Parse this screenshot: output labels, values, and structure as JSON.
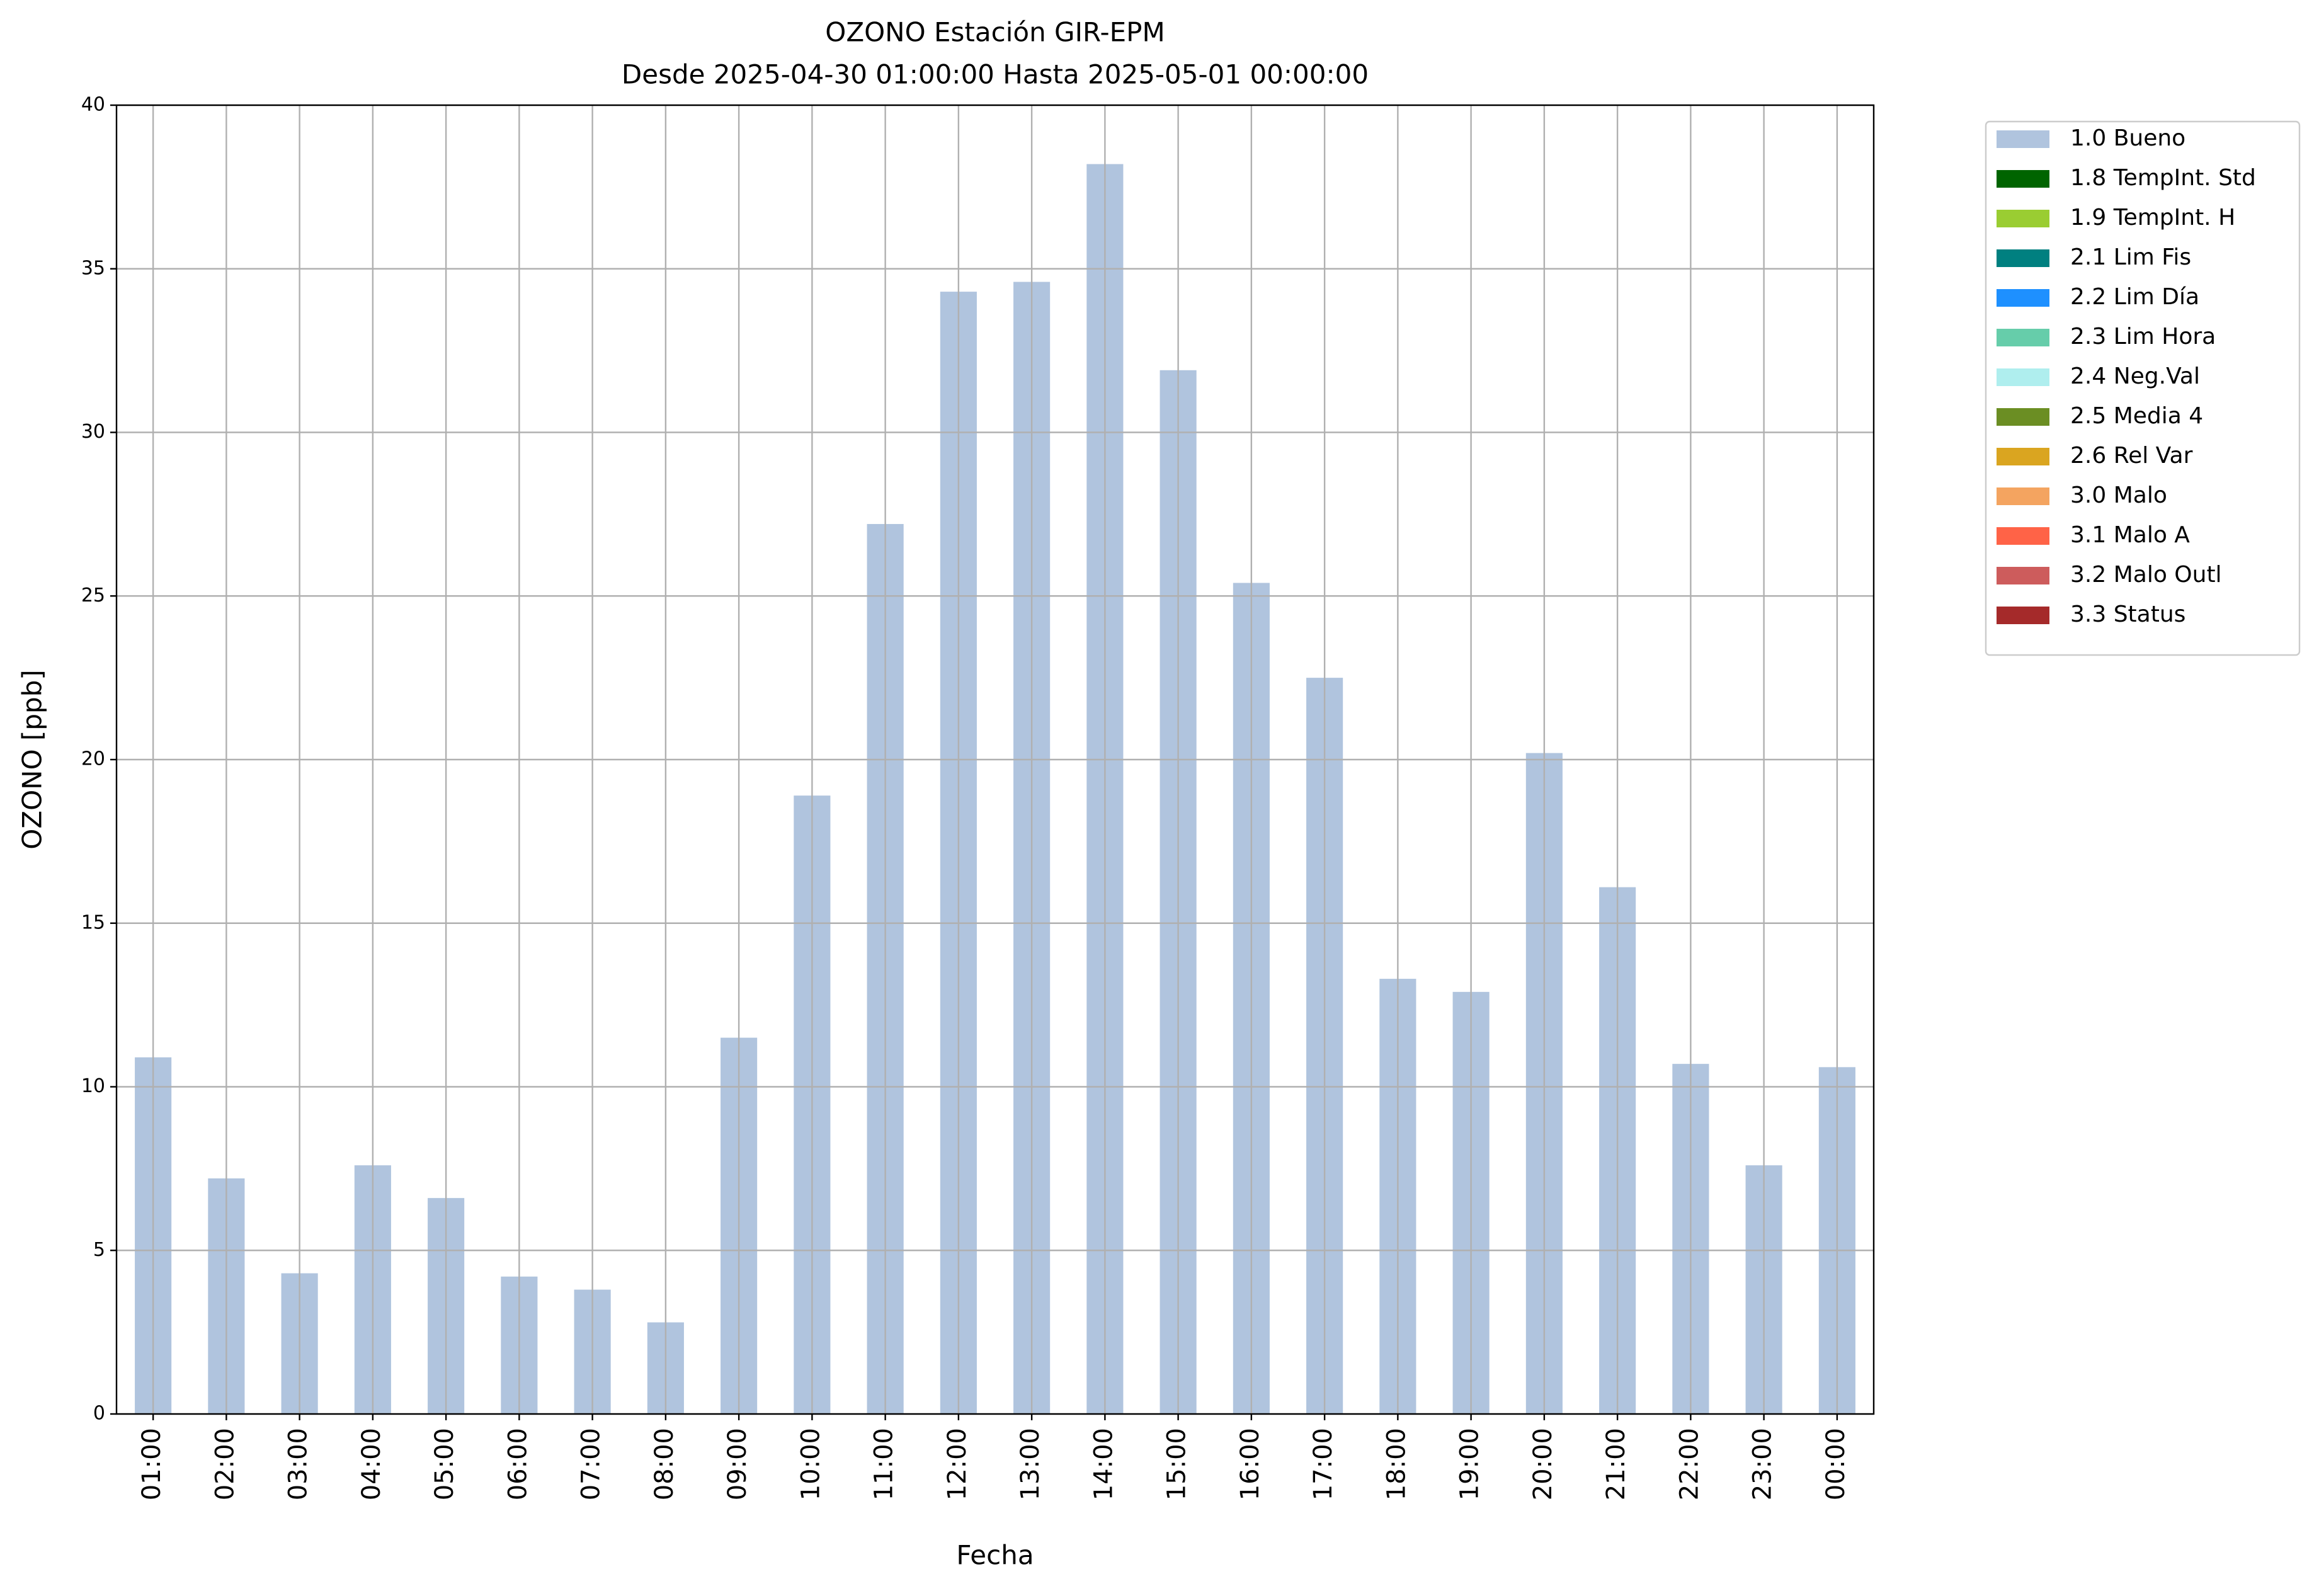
{
  "chart_data": {
    "type": "bar",
    "title": "OZONO Estación GIR-EPM",
    "subtitle": "Desde 2025-04-30 01:00:00 Hasta 2025-05-01 00:00:00",
    "x_label": "Fecha",
    "y_label": "OZONO [ppb]",
    "categories": [
      "01:00",
      "02:00",
      "03:00",
      "04:00",
      "05:00",
      "06:00",
      "07:00",
      "08:00",
      "09:00",
      "10:00",
      "11:00",
      "12:00",
      "13:00",
      "14:00",
      "15:00",
      "16:00",
      "17:00",
      "18:00",
      "19:00",
      "20:00",
      "21:00",
      "22:00",
      "23:00",
      "00:00"
    ],
    "series": [
      {
        "name": "1.0 Bueno",
        "color": "#b0c4de",
        "values": [
          10.9,
          7.2,
          4.3,
          7.6,
          6.6,
          4.2,
          3.8,
          2.8,
          11.5,
          18.9,
          27.2,
          34.3,
          34.6,
          38.2,
          31.9,
          25.4,
          22.5,
          13.3,
          12.9,
          20.2,
          16.1,
          10.7,
          7.6,
          10.6
        ]
      }
    ],
    "legend": [
      {
        "name": "1.8 TempInt. Std",
        "color": "#006400"
      },
      {
        "name": "1.9 TempInt. H",
        "color": "#9acd32"
      },
      {
        "name": "2.1 Lim Fis",
        "color": "#008080"
      },
      {
        "name": "2.2 Lim Día",
        "color": "#1e90ff"
      },
      {
        "name": "2.3 Lim Hora",
        "color": "#66cdaa"
      },
      {
        "name": "2.4 Neg.Val",
        "color": "#afeeee"
      },
      {
        "name": "2.5 Media 4",
        "color": "#6b8e23"
      },
      {
        "name": "2.6 Rel Var",
        "color": "#daa520"
      },
      {
        "name": "3.0 Malo",
        "color": "#f4a460"
      },
      {
        "name": "3.1 Malo A",
        "color": "#ff6347"
      },
      {
        "name": "3.2 Malo Outl",
        "color": "#cd5c5c"
      },
      {
        "name": "3.3 Status",
        "color": "#a52a2a"
      }
    ],
    "ylim": [
      0,
      40
    ],
    "yticks": [
      0,
      5,
      10,
      15,
      20,
      25,
      30,
      35,
      40
    ],
    "grid": true,
    "legend_position": "outside-upper-right"
  }
}
